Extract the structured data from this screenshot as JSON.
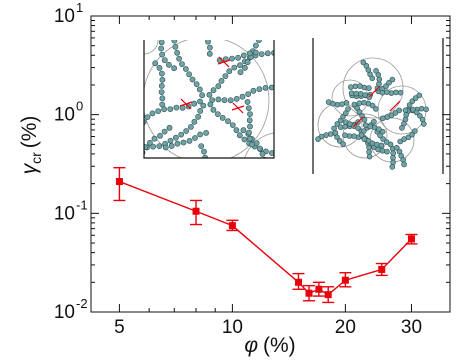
{
  "colors": {
    "series": "#e8000b",
    "axis": "#111111",
    "particle": "#6fa3a6",
    "particle_edge": "#2f4f52",
    "inset_circle": "#9a9a9a"
  },
  "chart_data": {
    "type": "scatter",
    "title": "",
    "x_scale": "log",
    "y_scale": "log",
    "xlim": [
      4.2,
      38
    ],
    "ylim": [
      0.01,
      10
    ],
    "grid": false,
    "legend": "none",
    "xlabel_symbol": "φ",
    "xlabel_unit": "(%)",
    "ylabel_symbol": "γ",
    "ylabel_sub": "cr",
    "ylabel_unit": "(%)",
    "x_ticks": [
      {
        "value": 5,
        "label": "5"
      },
      {
        "value": 10,
        "label": "10"
      },
      {
        "value": 20,
        "label": "20"
      },
      {
        "value": 30,
        "label": "30"
      }
    ],
    "y_ticks": [
      {
        "value": 0.01,
        "base": "10",
        "exp": "-2"
      },
      {
        "value": 0.1,
        "base": "10",
        "exp": "-1"
      },
      {
        "value": 1,
        "base": "10",
        "exp": "0"
      },
      {
        "value": 10,
        "base": "10",
        "exp": "1"
      }
    ],
    "series": [
      {
        "x": [
          5,
          8,
          10,
          15,
          16,
          17,
          18,
          20,
          25,
          30
        ],
        "y": [
          0.21,
          0.105,
          0.075,
          0.02,
          0.0155,
          0.017,
          0.015,
          0.021,
          0.027,
          0.055
        ],
        "y_low": [
          0.135,
          0.077,
          0.067,
          0.017,
          0.013,
          0.0145,
          0.0125,
          0.018,
          0.0235,
          0.049
        ],
        "y_high": [
          0.29,
          0.135,
          0.085,
          0.0245,
          0.0185,
          0.02,
          0.018,
          0.025,
          0.031,
          0.061
        ]
      }
    ]
  }
}
